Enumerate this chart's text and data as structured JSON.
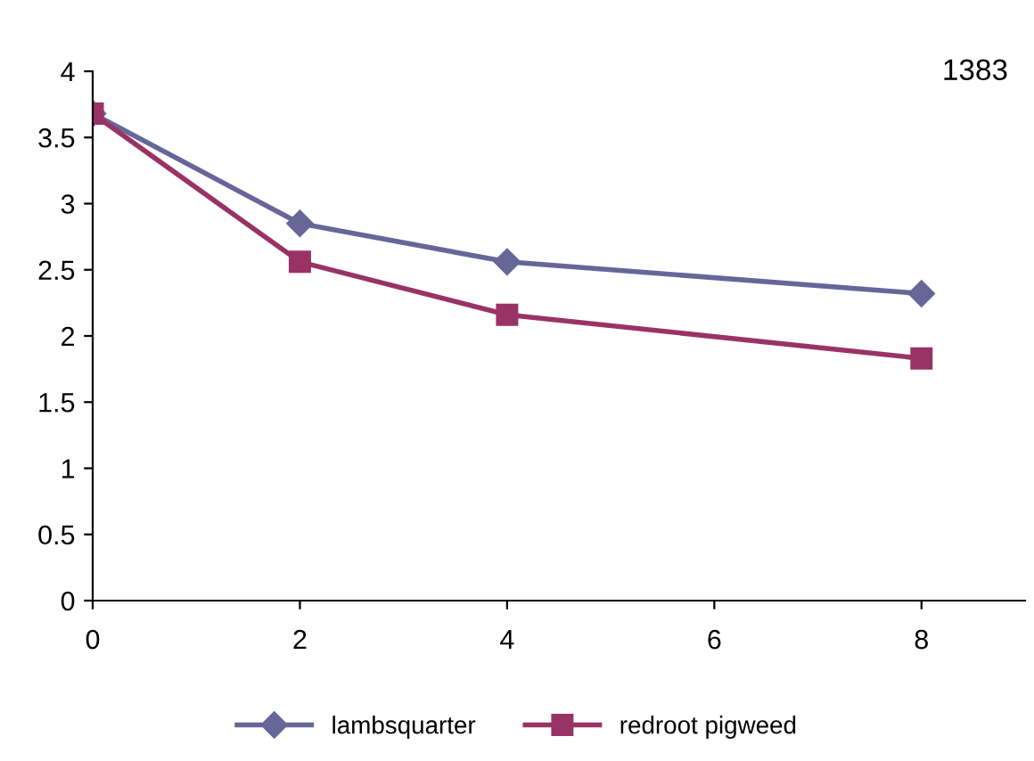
{
  "chart_data": {
    "type": "line",
    "x": [
      0,
      2,
      4,
      8
    ],
    "series": [
      {
        "name": "lambsquarter",
        "color": "#666699",
        "marker": "diamond",
        "values": [
          3.68,
          2.85,
          2.56,
          2.32
        ]
      },
      {
        "name": "redroot pigweed",
        "color": "#993366",
        "marker": "square",
        "values": [
          3.68,
          2.56,
          2.16,
          1.83
        ]
      }
    ],
    "xlim": [
      0,
      9
    ],
    "xticks": [
      0,
      2,
      4,
      6,
      8
    ],
    "ylim": [
      0,
      4
    ],
    "yticks": [
      0,
      0.5,
      1,
      1.5,
      2,
      2.5,
      3,
      3.5,
      4
    ],
    "annotations": [
      "1383"
    ],
    "grid": false,
    "legend": "bottom",
    "line_style": "solid"
  }
}
